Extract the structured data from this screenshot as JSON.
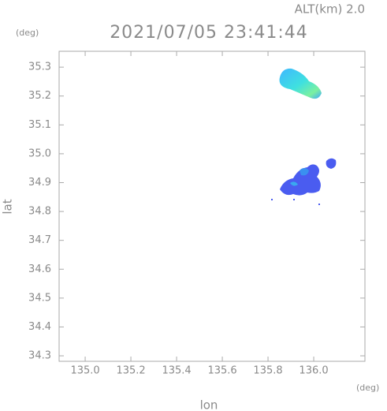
{
  "chart_data": {
    "type": "map",
    "title": "2021/07/05 23:41:44",
    "subtitle": "ALT(km) 2.0",
    "x_label": "lon",
    "y_label": "lat",
    "x_unit": "(deg)",
    "y_unit": "(deg)",
    "xlim": [
      134.886,
      136.224
    ],
    "ylim": [
      34.281,
      35.355
    ],
    "xticks": [
      {
        "value": 135.0,
        "label": "135.0"
      },
      135.2,
      135.4,
      135.6,
      135.8,
      {
        "value": 136.0,
        "label": "136.0"
      }
    ],
    "yticks": [
      34.3,
      34.4,
      34.5,
      34.6,
      34.7,
      34.8,
      34.9,
      {
        "value": 35.0,
        "label": "35.0"
      },
      35.1,
      35.2,
      35.3
    ]
  }
}
